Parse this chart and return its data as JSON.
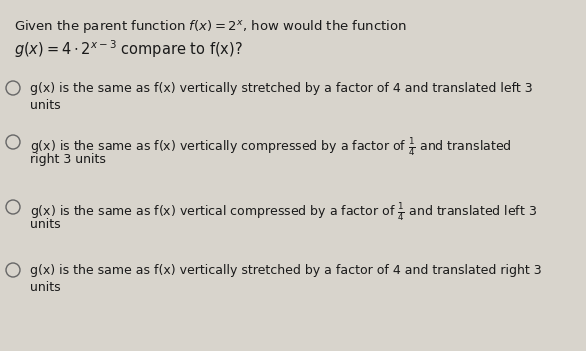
{
  "background_color": "#d8d4cc",
  "title_line1": "Given the parent function $f(x) = 2^x$, how would the function",
  "title_line2": "$g(x) = 4 \\cdot 2^{x-3}$ compare to f(x)?",
  "options": [
    [
      "g(x) is the same as f(x) vertically stretched by a factor of 4 and translated left 3",
      "units"
    ],
    [
      "g(x) is the same as f(x) vertically compressed by a factor of $\\frac{1}{4}$ and translated",
      "right 3 units"
    ],
    [
      "g(x) is the same as f(x) vertical compressed by a factor of $\\frac{1}{4}$ and translated left 3",
      "units"
    ],
    [
      "g(x) is the same as f(x) vertically stretched by a factor of 4 and translated right 3",
      "units"
    ]
  ],
  "text_color": "#1a1a1a",
  "circle_edge_color": "#666666",
  "font_size_title1": 9.5,
  "font_size_title2": 10.5,
  "font_size_options": 9.0,
  "fig_width": 5.86,
  "fig_height": 3.51,
  "dpi": 100
}
